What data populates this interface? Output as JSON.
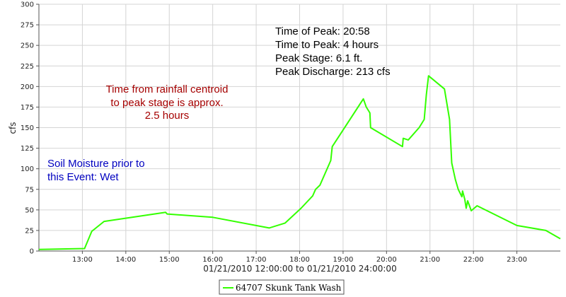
{
  "chart_data": {
    "type": "line",
    "ylabel": "cfs",
    "xlabel": "01/21/2010 12:00:00 to 01/21/2010 24:00:00",
    "ylim": [
      0,
      300
    ],
    "xlim": [
      "12:00",
      "24:00"
    ],
    "y_ticks": [
      "0",
      "25",
      "50",
      "75",
      "100",
      "125",
      "150",
      "175",
      "200",
      "225",
      "250",
      "275",
      "300"
    ],
    "x_ticks": [
      "13:00",
      "14:00",
      "15:00",
      "16:00",
      "17:00",
      "18:00",
      "19:00",
      "20:00",
      "21:00",
      "22:00",
      "23:00"
    ],
    "grid": true,
    "legend_position": "bottom-center",
    "series": [
      {
        "name": "64707 Skunk Tank Wash",
        "color": "#33ff00",
        "x": [
          "12:00",
          "13:03",
          "13:13",
          "13:30",
          "14:55",
          "14:57",
          "16:00",
          "17:18",
          "17:40",
          "18:02",
          "18:18",
          "18:22",
          "18:28",
          "18:43",
          "18:45",
          "19:28",
          "19:32",
          "19:37",
          "19:38",
          "20:22",
          "20:23",
          "20:30",
          "20:35",
          "20:45",
          "20:52",
          "20:53",
          "20:55",
          "20:58",
          "21:20",
          "21:27",
          "21:30",
          "21:35",
          "21:39",
          "21:44",
          "21:45",
          "21:48",
          "21:50",
          "21:52",
          "21:57",
          "22:05",
          "23:00",
          "23:40",
          "24:00"
        ],
        "y": [
          2,
          3,
          24,
          36,
          47,
          45,
          41,
          28,
          34,
          52,
          67,
          75,
          80,
          110,
          127,
          185,
          175,
          168,
          150,
          127,
          137,
          135,
          140,
          150,
          160,
          170,
          190,
          213,
          197,
          160,
          107,
          87,
          75,
          66,
          73,
          63,
          52,
          61,
          49,
          55,
          31,
          25,
          15
        ]
      }
    ],
    "annotations": {
      "peak_lines": [
        "Time of Peak: 20:58",
        "Time to Peak: 4 hours",
        "Peak Stage: 6.1 ft.",
        "Peak Discharge: 213 cfs"
      ],
      "centroid_lines": [
        "Time from rainfall centroid",
        "to peak stage is approx.",
        "2.5 hours"
      ],
      "soil_lines": [
        "Soil Moisture prior to",
        "this Event: Wet"
      ]
    }
  },
  "colors": {
    "gridline": "#d4d4d4",
    "axis": "#555555",
    "peak_text": "#000000",
    "centroid_text": "#a50000",
    "soil_text": "#0000c0"
  }
}
